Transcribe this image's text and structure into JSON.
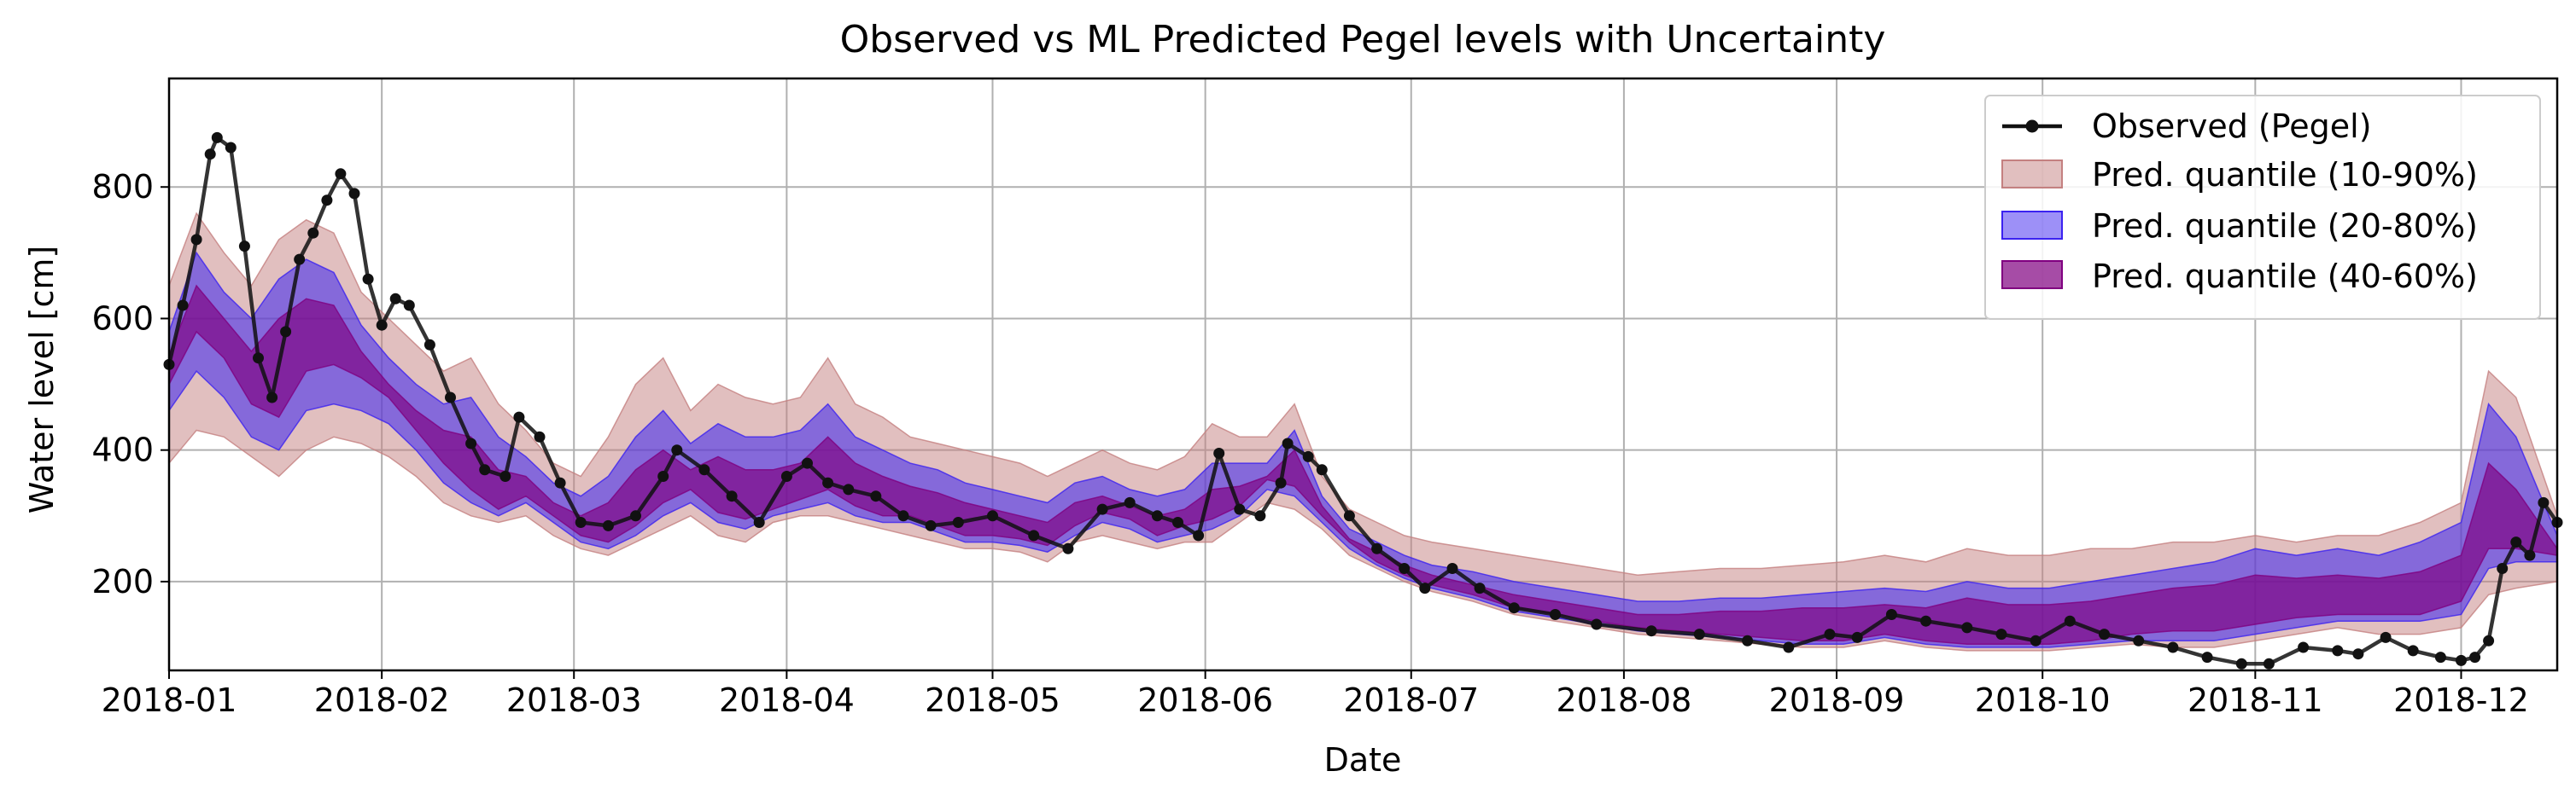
{
  "chart_data": {
    "type": "line",
    "title": "Observed vs ML Predicted Pegel levels with Uncertainty",
    "xlabel": "Date",
    "ylabel": "Water level [cm]",
    "xlim": [
      "2018-01-01",
      "2018-12-15"
    ],
    "ylim": [
      65,
      965
    ],
    "x_ticks": [
      "2018-01-01",
      "2018-02-01",
      "2018-03-01",
      "2018-04-01",
      "2018-05-01",
      "2018-06-01",
      "2018-07-01",
      "2018-08-01",
      "2018-09-01",
      "2018-10-01",
      "2018-11-01",
      "2018-12-01"
    ],
    "x_tick_labels": [
      "2018-01",
      "2018-02",
      "2018-03",
      "2018-04",
      "2018-05",
      "2018-06",
      "2018-07",
      "2018-08",
      "2018-09",
      "2018-10",
      "2018-11",
      "2018-12"
    ],
    "y_ticks": [
      200,
      400,
      600,
      800
    ],
    "y_tick_labels": [
      "200",
      "400",
      "600",
      "800"
    ],
    "grid": true,
    "legend_position": "top-right",
    "colors": {
      "observed": "#111111",
      "q10_90": "#c48080",
      "q20_80": "#3b22f0",
      "q40_60": "#800080"
    },
    "series": [
      {
        "name": "Observed (Pegel)",
        "kind": "line-markers",
        "x": [
          "2018-01-01",
          "2018-01-03",
          "2018-01-05",
          "2018-01-07",
          "2018-01-08",
          "2018-01-10",
          "2018-01-12",
          "2018-01-14",
          "2018-01-16",
          "2018-01-18",
          "2018-01-20",
          "2018-01-22",
          "2018-01-24",
          "2018-01-26",
          "2018-01-28",
          "2018-01-30",
          "2018-02-01",
          "2018-02-03",
          "2018-02-05",
          "2018-02-08",
          "2018-02-11",
          "2018-02-14",
          "2018-02-16",
          "2018-02-19",
          "2018-02-21",
          "2018-02-24",
          "2018-02-27",
          "2018-03-02",
          "2018-03-06",
          "2018-03-10",
          "2018-03-14",
          "2018-03-16",
          "2018-03-20",
          "2018-03-24",
          "2018-03-28",
          "2018-04-01",
          "2018-04-04",
          "2018-04-07",
          "2018-04-10",
          "2018-04-14",
          "2018-04-18",
          "2018-04-22",
          "2018-04-26",
          "2018-05-01",
          "2018-05-07",
          "2018-05-12",
          "2018-05-17",
          "2018-05-21",
          "2018-05-25",
          "2018-05-28",
          "2018-05-31",
          "2018-06-03",
          "2018-06-06",
          "2018-06-09",
          "2018-06-12",
          "2018-06-13",
          "2018-06-16",
          "2018-06-18",
          "2018-06-22",
          "2018-06-26",
          "2018-06-30",
          "2018-07-03",
          "2018-07-07",
          "2018-07-11",
          "2018-07-16",
          "2018-07-22",
          "2018-07-28",
          "2018-08-05",
          "2018-08-12",
          "2018-08-19",
          "2018-08-25",
          "2018-08-31",
          "2018-09-04",
          "2018-09-09",
          "2018-09-14",
          "2018-09-20",
          "2018-09-25",
          "2018-09-30",
          "2018-10-05",
          "2018-10-10",
          "2018-10-15",
          "2018-10-20",
          "2018-10-25",
          "2018-10-30",
          "2018-11-03",
          "2018-11-08",
          "2018-11-13",
          "2018-11-16",
          "2018-11-20",
          "2018-11-24",
          "2018-11-28",
          "2018-12-01",
          "2018-12-03",
          "2018-12-05",
          "2018-12-07",
          "2018-12-09",
          "2018-12-11",
          "2018-12-13",
          "2018-12-15"
        ],
        "y": [
          530,
          620,
          720,
          850,
          875,
          860,
          710,
          540,
          480,
          580,
          690,
          730,
          780,
          820,
          790,
          660,
          590,
          630,
          620,
          560,
          480,
          410,
          370,
          360,
          450,
          420,
          350,
          290,
          285,
          300,
          360,
          400,
          370,
          330,
          290,
          360,
          380,
          350,
          340,
          330,
          300,
          285,
          290,
          300,
          270,
          250,
          310,
          320,
          300,
          290,
          270,
          395,
          310,
          300,
          350,
          410,
          390,
          370,
          300,
          250,
          220,
          190,
          220,
          190,
          160,
          150,
          135,
          125,
          120,
          110,
          100,
          120,
          115,
          150,
          140,
          130,
          120,
          110,
          140,
          120,
          110,
          100,
          85,
          75,
          75,
          100,
          95,
          90,
          115,
          95,
          85,
          80,
          85,
          110,
          220,
          260,
          240,
          320,
          290
        ]
      },
      {
        "name": "Pred. quantile (10-90%)",
        "kind": "band",
        "x": [
          "2018-01-01",
          "2018-01-05",
          "2018-01-09",
          "2018-01-13",
          "2018-01-17",
          "2018-01-21",
          "2018-01-25",
          "2018-01-29",
          "2018-02-02",
          "2018-02-06",
          "2018-02-10",
          "2018-02-14",
          "2018-02-18",
          "2018-02-22",
          "2018-02-26",
          "2018-03-02",
          "2018-03-06",
          "2018-03-10",
          "2018-03-14",
          "2018-03-18",
          "2018-03-22",
          "2018-03-26",
          "2018-03-30",
          "2018-04-03",
          "2018-04-07",
          "2018-04-11",
          "2018-04-15",
          "2018-04-19",
          "2018-04-23",
          "2018-04-27",
          "2018-05-01",
          "2018-05-05",
          "2018-05-09",
          "2018-05-13",
          "2018-05-17",
          "2018-05-21",
          "2018-05-25",
          "2018-05-29",
          "2018-06-02",
          "2018-06-06",
          "2018-06-10",
          "2018-06-14",
          "2018-06-18",
          "2018-06-22",
          "2018-06-26",
          "2018-06-30",
          "2018-07-04",
          "2018-07-10",
          "2018-07-16",
          "2018-07-22",
          "2018-07-28",
          "2018-08-03",
          "2018-08-09",
          "2018-08-15",
          "2018-08-21",
          "2018-08-27",
          "2018-09-02",
          "2018-09-08",
          "2018-09-14",
          "2018-09-20",
          "2018-09-26",
          "2018-10-02",
          "2018-10-08",
          "2018-10-14",
          "2018-10-20",
          "2018-10-26",
          "2018-11-01",
          "2018-11-07",
          "2018-11-13",
          "2018-11-19",
          "2018-11-25",
          "2018-12-01",
          "2018-12-05",
          "2018-12-09",
          "2018-12-15"
        ],
        "low": [
          380,
          430,
          420,
          390,
          360,
          400,
          420,
          410,
          390,
          360,
          320,
          300,
          290,
          300,
          270,
          250,
          240,
          260,
          280,
          300,
          270,
          260,
          290,
          300,
          300,
          290,
          280,
          270,
          260,
          250,
          250,
          245,
          230,
          260,
          270,
          260,
          250,
          260,
          260,
          290,
          320,
          310,
          280,
          240,
          220,
          200,
          185,
          170,
          150,
          140,
          130,
          120,
          115,
          110,
          105,
          100,
          100,
          110,
          100,
          95,
          95,
          95,
          100,
          105,
          100,
          100,
          110,
          120,
          130,
          120,
          120,
          130,
          180,
          190,
          200
        ],
        "high": [
          650,
          760,
          700,
          650,
          720,
          750,
          730,
          640,
          600,
          560,
          520,
          540,
          470,
          430,
          380,
          360,
          420,
          500,
          540,
          460,
          500,
          480,
          470,
          480,
          540,
          470,
          450,
          420,
          410,
          400,
          390,
          380,
          360,
          380,
          400,
          380,
          370,
          390,
          440,
          420,
          420,
          470,
          360,
          310,
          290,
          270,
          260,
          250,
          240,
          230,
          220,
          210,
          215,
          220,
          220,
          225,
          230,
          240,
          230,
          250,
          240,
          240,
          250,
          250,
          260,
          260,
          270,
          260,
          270,
          270,
          290,
          320,
          520,
          480,
          300
        ]
      },
      {
        "name": "Pred. quantile (20-80%)",
        "kind": "band",
        "x": [
          "2018-01-01",
          "2018-01-05",
          "2018-01-09",
          "2018-01-13",
          "2018-01-17",
          "2018-01-21",
          "2018-01-25",
          "2018-01-29",
          "2018-02-02",
          "2018-02-06",
          "2018-02-10",
          "2018-02-14",
          "2018-02-18",
          "2018-02-22",
          "2018-02-26",
          "2018-03-02",
          "2018-03-06",
          "2018-03-10",
          "2018-03-14",
          "2018-03-18",
          "2018-03-22",
          "2018-03-26",
          "2018-03-30",
          "2018-04-03",
          "2018-04-07",
          "2018-04-11",
          "2018-04-15",
          "2018-04-19",
          "2018-04-23",
          "2018-04-27",
          "2018-05-01",
          "2018-05-05",
          "2018-05-09",
          "2018-05-13",
          "2018-05-17",
          "2018-05-21",
          "2018-05-25",
          "2018-05-29",
          "2018-06-02",
          "2018-06-06",
          "2018-06-10",
          "2018-06-14",
          "2018-06-18",
          "2018-06-22",
          "2018-06-26",
          "2018-06-30",
          "2018-07-04",
          "2018-07-10",
          "2018-07-16",
          "2018-07-22",
          "2018-07-28",
          "2018-08-03",
          "2018-08-09",
          "2018-08-15",
          "2018-08-21",
          "2018-08-27",
          "2018-09-02",
          "2018-09-08",
          "2018-09-14",
          "2018-09-20",
          "2018-09-26",
          "2018-10-02",
          "2018-10-08",
          "2018-10-14",
          "2018-10-20",
          "2018-10-26",
          "2018-11-01",
          "2018-11-07",
          "2018-11-13",
          "2018-11-19",
          "2018-11-25",
          "2018-12-01",
          "2018-12-05",
          "2018-12-09",
          "2018-12-15"
        ],
        "low": [
          460,
          520,
          480,
          420,
          400,
          460,
          470,
          460,
          440,
          400,
          350,
          320,
          300,
          320,
          290,
          260,
          250,
          270,
          300,
          320,
          290,
          280,
          300,
          310,
          320,
          300,
          290,
          290,
          275,
          260,
          260,
          255,
          245,
          270,
          290,
          280,
          260,
          270,
          280,
          300,
          340,
          330,
          290,
          250,
          225,
          205,
          190,
          175,
          155,
          145,
          135,
          125,
          120,
          115,
          110,
          105,
          105,
          115,
          105,
          100,
          100,
          100,
          105,
          110,
          110,
          110,
          120,
          130,
          140,
          140,
          140,
          150,
          220,
          230,
          230
        ],
        "high": [
          580,
          700,
          640,
          600,
          660,
          690,
          670,
          590,
          540,
          500,
          470,
          480,
          420,
          390,
          350,
          330,
          360,
          420,
          460,
          410,
          440,
          420,
          420,
          430,
          470,
          420,
          400,
          380,
          370,
          350,
          340,
          330,
          320,
          350,
          360,
          340,
          330,
          340,
          380,
          380,
          380,
          430,
          330,
          280,
          260,
          240,
          225,
          215,
          200,
          190,
          180,
          170,
          170,
          175,
          175,
          180,
          185,
          190,
          185,
          200,
          190,
          190,
          200,
          210,
          220,
          230,
          250,
          240,
          250,
          240,
          260,
          290,
          470,
          420,
          270
        ]
      },
      {
        "name": "Pred. quantile (40-60%)",
        "kind": "band",
        "x": [
          "2018-01-01",
          "2018-01-05",
          "2018-01-09",
          "2018-01-13",
          "2018-01-17",
          "2018-01-21",
          "2018-01-25",
          "2018-01-29",
          "2018-02-02",
          "2018-02-06",
          "2018-02-10",
          "2018-02-14",
          "2018-02-18",
          "2018-02-22",
          "2018-02-26",
          "2018-03-02",
          "2018-03-06",
          "2018-03-10",
          "2018-03-14",
          "2018-03-18",
          "2018-03-22",
          "2018-03-26",
          "2018-03-30",
          "2018-04-03",
          "2018-04-07",
          "2018-04-11",
          "2018-04-15",
          "2018-04-19",
          "2018-04-23",
          "2018-04-27",
          "2018-05-01",
          "2018-05-05",
          "2018-05-09",
          "2018-05-13",
          "2018-05-17",
          "2018-05-21",
          "2018-05-25",
          "2018-05-29",
          "2018-06-02",
          "2018-06-06",
          "2018-06-10",
          "2018-06-14",
          "2018-06-18",
          "2018-06-22",
          "2018-06-26",
          "2018-06-30",
          "2018-07-04",
          "2018-07-10",
          "2018-07-16",
          "2018-07-22",
          "2018-07-28",
          "2018-08-03",
          "2018-08-09",
          "2018-08-15",
          "2018-08-21",
          "2018-08-27",
          "2018-09-02",
          "2018-09-08",
          "2018-09-14",
          "2018-09-20",
          "2018-09-26",
          "2018-10-02",
          "2018-10-08",
          "2018-10-14",
          "2018-10-20",
          "2018-10-26",
          "2018-11-01",
          "2018-11-07",
          "2018-11-13",
          "2018-11-19",
          "2018-11-25",
          "2018-12-01",
          "2018-12-05",
          "2018-12-09",
          "2018-12-15"
        ],
        "low": [
          500,
          580,
          540,
          470,
          450,
          520,
          530,
          510,
          480,
          430,
          380,
          340,
          310,
          330,
          300,
          270,
          260,
          285,
          320,
          340,
          305,
          295,
          310,
          325,
          340,
          315,
          300,
          300,
          285,
          270,
          270,
          265,
          255,
          285,
          305,
          295,
          270,
          285,
          295,
          315,
          355,
          345,
          300,
          260,
          230,
          210,
          195,
          180,
          160,
          150,
          140,
          130,
          125,
          120,
          115,
          110,
          110,
          120,
          110,
          105,
          105,
          105,
          110,
          120,
          125,
          125,
          135,
          145,
          150,
          150,
          150,
          170,
          250,
          250,
          240
        ],
        "high": [
          545,
          650,
          600,
          550,
          600,
          630,
          620,
          550,
          500,
          460,
          430,
          420,
          370,
          360,
          320,
          300,
          320,
          370,
          400,
          370,
          390,
          370,
          370,
          380,
          420,
          380,
          360,
          345,
          335,
          320,
          310,
          300,
          290,
          320,
          330,
          315,
          300,
          310,
          340,
          345,
          360,
          400,
          315,
          265,
          245,
          225,
          210,
          195,
          180,
          170,
          160,
          150,
          150,
          155,
          155,
          160,
          160,
          165,
          160,
          175,
          165,
          165,
          170,
          180,
          190,
          195,
          210,
          205,
          210,
          205,
          215,
          240,
          380,
          340,
          250
        ]
      }
    ]
  }
}
